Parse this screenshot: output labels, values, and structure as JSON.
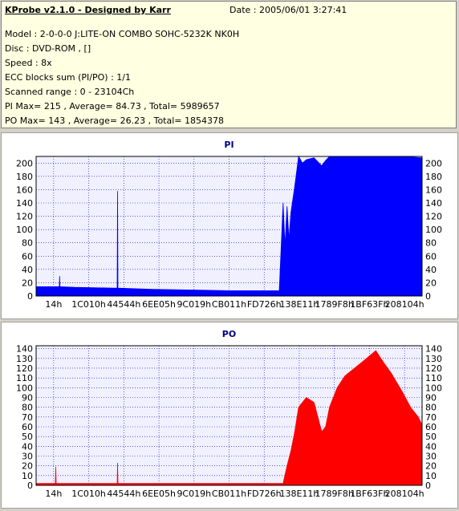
{
  "app": {
    "title": "KProbe v2.1.0 - Designed by Karr",
    "date_line": "Date : 2005/06/01 3:27:41"
  },
  "info_lines": [
    "Model : 2-0-0-0 J:LITE-ON COMBO SOHC-5232K NK0H",
    "Disc : DVD-ROM ,  []",
    "Speed : 8x",
    "ECC blocks sum (PI/PO) : 1/1",
    "Scanned range : 0 - 23104Ch",
    "PI Max= 215 , Average= 84.73 , Total= 5989657",
    "PO Max= 143 , Average= 26.23 , Total= 1854378"
  ],
  "colors": {
    "info_background": "#ffffe1",
    "window_background": "#d4d0c8",
    "plot_background": "#f0f0ff",
    "gridline": "#0000c0",
    "title_color": "#000080",
    "pi_series": "#0000ff",
    "po_series": "#ff0000"
  },
  "chart_data": [
    {
      "type": "area",
      "title": "PI",
      "x_tick_labels": [
        "14h",
        "1C010h",
        "44544h",
        "6EE05h",
        "9C019h",
        "CB011h",
        "FD726h",
        "138E11h",
        "1789F8h",
        "1BF63Fh",
        "208104h"
      ],
      "y_ticks": [
        0,
        20,
        40,
        60,
        80,
        100,
        120,
        140,
        160,
        180,
        200
      ],
      "ylim": [
        0,
        210
      ],
      "grid": true,
      "legend": "none",
      "x_axis_range": "0 - 23104Ch",
      "stats": {
        "max": 215,
        "average": 84.73,
        "total": 5989657
      },
      "series": [
        {
          "color": "#0000ff",
          "x": [
            0,
            0.04,
            0.06,
            0.061,
            0.062,
            0.1,
            0.2,
            0.21,
            0.211,
            0.212,
            0.3,
            0.4,
            0.5,
            0.6,
            0.62,
            0.63,
            0.64,
            0.645,
            0.65,
            0.655,
            0.66,
            0.67,
            0.68,
            0.69,
            0.7,
            0.72,
            0.74,
            0.75,
            0.76,
            0.8,
            0.85,
            0.9,
            0.95,
            1.0
          ],
          "values": [
            14,
            14,
            14,
            30,
            14,
            13,
            12,
            12,
            158,
            12,
            10,
            9,
            8,
            8,
            8,
            8,
            140,
            75,
            135,
            85,
            125,
            165,
            210,
            200,
            205,
            208,
            196,
            204,
            210,
            214,
            213,
            212,
            210,
            208
          ]
        }
      ]
    },
    {
      "type": "area",
      "title": "PO",
      "x_tick_labels": [
        "14h",
        "1C010h",
        "44544h",
        "6EE05h",
        "9C019h",
        "CB011h",
        "FD726h",
        "138E11h",
        "1789F8h",
        "1BF63Fh",
        "208104h"
      ],
      "y_ticks": [
        0,
        10,
        20,
        30,
        40,
        50,
        60,
        70,
        80,
        90,
        100,
        110,
        120,
        130,
        140
      ],
      "ylim": [
        0,
        143
      ],
      "grid": true,
      "legend": "none",
      "x_axis_range": "0 - 23104Ch",
      "stats": {
        "max": 143,
        "average": 26.23,
        "total": 1854378
      },
      "series": [
        {
          "color": "#ff0000",
          "x": [
            0,
            0.04,
            0.05,
            0.051,
            0.052,
            0.1,
            0.2,
            0.21,
            0.211,
            0.212,
            0.3,
            0.4,
            0.5,
            0.6,
            0.62,
            0.64,
            0.65,
            0.66,
            0.67,
            0.68,
            0.7,
            0.72,
            0.74,
            0.75,
            0.76,
            0.78,
            0.8,
            0.85,
            0.88,
            0.9,
            0.92,
            0.95,
            0.97,
            0.99,
            1.0
          ],
          "values": [
            2,
            2,
            2,
            19,
            2,
            2,
            2,
            2,
            23,
            2,
            2,
            2,
            2,
            2,
            2,
            2,
            20,
            35,
            55,
            80,
            90,
            85,
            55,
            60,
            80,
            100,
            112,
            128,
            138,
            126,
            115,
            95,
            80,
            70,
            62
          ]
        }
      ]
    }
  ]
}
